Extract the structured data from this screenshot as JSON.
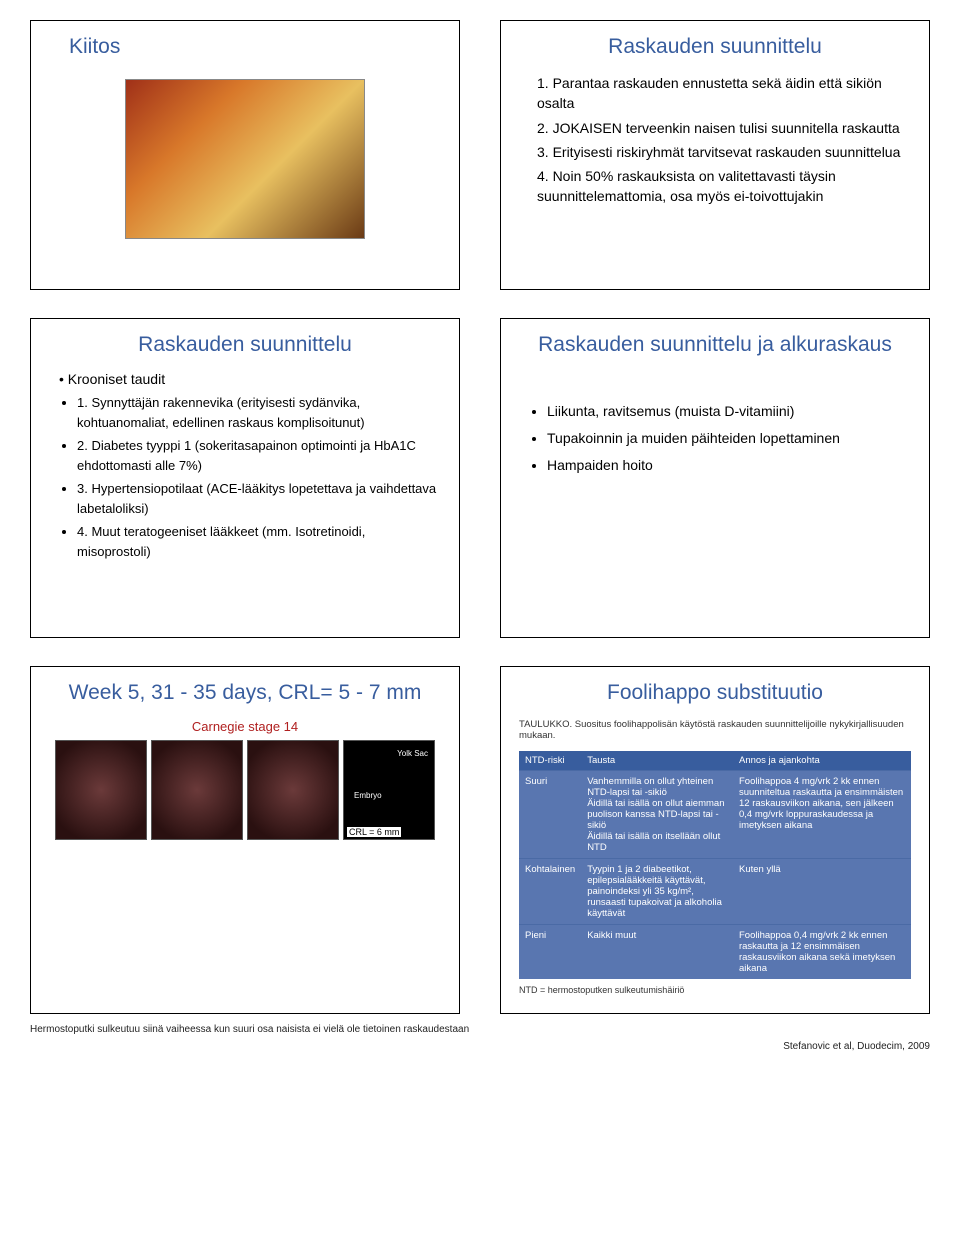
{
  "slide1": {
    "title": "Kiitos"
  },
  "slide2": {
    "title": "Raskauden suunnittelu",
    "items": [
      "1. Parantaa raskauden ennustetta sekä äidin että sikiön osalta",
      "2. JOKAISEN terveenkin naisen tulisi suunnitella raskautta",
      "3. Erityisesti riskiryhmät tarvitsevat raskauden suunnittelua",
      "4. Noin 50% raskauksista on valitettavasti täysin suunnittelemattomia, osa myös ei-toivottujakin"
    ]
  },
  "slide3": {
    "title": "Raskauden suunnittelu",
    "kroon": "Krooniset taudit",
    "items": [
      "1. Synnyttäjän rakennevika (erityisesti sydänvika, kohtuanomaliat, edellinen raskaus komplisoitunut)",
      "2. Diabetes tyyppi 1 (sokeritasapainon optimointi ja HbA1C ehdottomasti alle 7%)",
      "3. Hypertensiopotilaat (ACE-lääkitys lopetettava ja vaihdettava labetaloliksi)",
      "4. Muut teratogeeniset lääkkeet (mm. Isotretinoidi, misoprostoli)"
    ]
  },
  "slide4": {
    "title": "Raskauden suunnittelu ja alkuraskaus",
    "bullets": [
      "Liikunta, ravitsemus (muista D-vitamiini)",
      "Tupakoinnin ja muiden päihteiden lopettaminen",
      "Hampaiden hoito"
    ]
  },
  "slide5": {
    "title": "Week 5, 31 - 35 days, CRL= 5 - 7 mm",
    "carnegie": "Carnegie stage 14",
    "yolk": "Yolk Sac",
    "embryo": "Embryo",
    "crl": "CRL = 6 mm",
    "footer": "Hermostoputki sulkeutuu siinä vaiheessa kun suuri osa naisista ei vielä ole tietoinen raskaudestaan"
  },
  "slide6": {
    "title": "Foolihappo substituutio",
    "caption": "TAULUKKO. Suositus foolihappolisän käytöstä raskauden suunnittelijoille nykykirjallisuuden mukaan.",
    "columns": [
      "NTD-riski",
      "Tausta",
      "Annos ja ajankohta"
    ],
    "rows": [
      [
        "Suuri",
        "Vanhemmilla on ollut yhteinen NTD-lapsi tai -sikiö\nÄidillä tai isällä on ollut aiemman puolison kanssa NTD-lapsi tai -sikiö\nÄidillä tai isällä on itsellään ollut NTD",
        "Foolihappoa 4 mg/vrk 2 kk ennen suunniteltua raskautta ja ensimmäisten 12 raskausviikon aikana, sen jälkeen 0,4 mg/vrk loppuraskaudessa ja imetyksen aikana"
      ],
      [
        "Kohtalainen",
        "Tyypin 1 ja 2 diabeetikot, epilepsialääkkeitä käyttävät, painoindeksi yli 35 kg/m², runsaasti tupakoivat ja alkoholia käyttävät",
        "Kuten yllä"
      ],
      [
        "Pieni",
        "Kaikki muut",
        "Foolihappoa 0,4 mg/vrk 2 kk ennen raskautta ja 12 ensimmäisen raskausviikon aikana sekä imetyksen aikana"
      ]
    ],
    "footnote": "NTD = hermostoputken sulkeutumishäiriö",
    "citation": "Stefanovic et al, Duodecim, 2009"
  },
  "colors": {
    "title": "#385d9e",
    "table_header_bg": "#385d9e",
    "table_cell_bg": "#5976b0",
    "carnegie": "#b02020"
  }
}
